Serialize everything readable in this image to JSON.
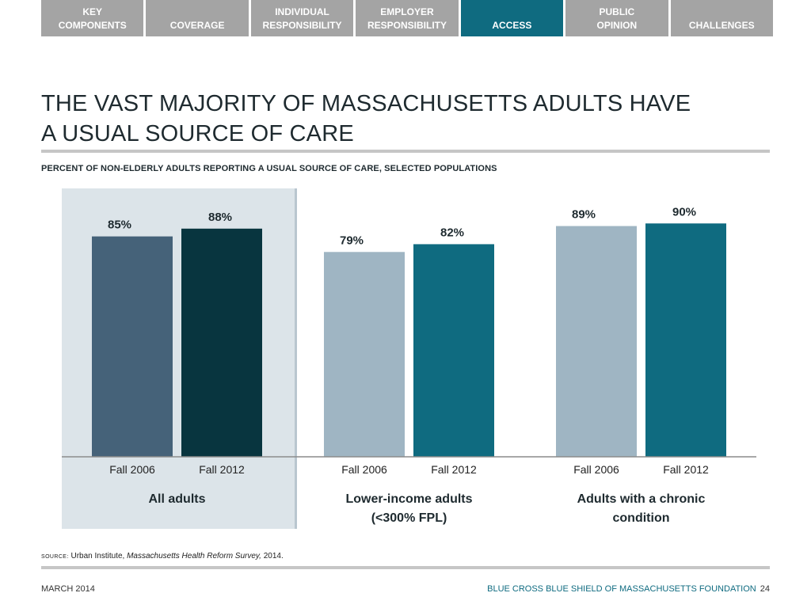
{
  "nav": {
    "tabs": [
      {
        "line1": "KEY",
        "line2": "COMPONENTS",
        "active": false
      },
      {
        "line1": "",
        "line2": "COVERAGE",
        "active": false
      },
      {
        "line1": "INDIVIDUAL",
        "line2": "RESPONSIBILITY",
        "active": false
      },
      {
        "line1": "EMPLOYER",
        "line2": "RESPONSIBILITY",
        "active": false
      },
      {
        "line1": "",
        "line2": "ACCESS",
        "active": true
      },
      {
        "line1": "PUBLIC",
        "line2": "OPINION",
        "active": false
      },
      {
        "line1": "",
        "line2": "CHALLENGES",
        "active": false
      }
    ]
  },
  "title": {
    "line1": "THE VAST MAJORITY OF MASSACHUSETTS ADULTS HAVE",
    "line2": "A USUAL SOURCE OF CARE"
  },
  "subtitle": "PERCENT OF NON-ELDERLY ADULTS REPORTING A USUAL SOURCE OF CARE, SELECTED POPULATIONS",
  "chart_data": {
    "type": "bar",
    "groups": [
      {
        "label_lines": [
          "All adults"
        ],
        "highlighted": true
      },
      {
        "label_lines": [
          "Lower-income adults",
          "(<300% FPL)"
        ],
        "highlighted": false
      },
      {
        "label_lines": [
          "Adults with a chronic",
          "condition"
        ],
        "highlighted": false
      }
    ],
    "categories": [
      "Fall 2006",
      "Fall 2012"
    ],
    "values": [
      [
        85,
        88
      ],
      [
        79,
        82
      ],
      [
        89,
        90
      ]
    ],
    "value_suffix": "%",
    "colors": [
      [
        "#456279",
        "#08353f"
      ],
      [
        "#9fb5c3",
        "#0f6b80"
      ],
      [
        "#9fb5c3",
        "#0f6b80"
      ]
    ],
    "highlight_color": "#dce4e9",
    "highlight_edge": "#b9c6cf",
    "baseline_color": "#8c8c8c"
  },
  "footer": {
    "source_label": "SOURCE:",
    "source_org": "Urban Institute,",
    "source_title": "Massachusetts Health Reform Survey,",
    "source_year": "2014.",
    "date": "MARCH 2014",
    "organization": "BLUE CROSS BLUE SHIELD OF MASSACHUSETTS FOUNDATION",
    "page_number": "24"
  }
}
